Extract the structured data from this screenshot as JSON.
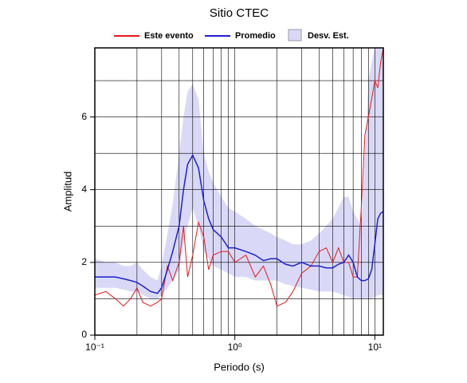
{
  "chart_data": {
    "type": "line",
    "title": "Sitio CTEC",
    "xlabel": "Periodo (s)",
    "ylabel": "Amplitud",
    "xscale": "log",
    "grid": true,
    "legend": "top",
    "xlim": [
      0.1,
      11.5
    ],
    "ylim": [
      0,
      7.9
    ],
    "xticks": [
      {
        "value": 0.1,
        "label": "10⁻¹"
      },
      {
        "value": 1,
        "label": "10⁰"
      },
      {
        "value": 10,
        "label": "10¹"
      }
    ],
    "xminor": [
      0.2,
      0.3,
      0.4,
      0.5,
      0.6,
      0.7,
      0.8,
      0.9,
      2,
      3,
      4,
      5,
      6,
      7,
      8,
      9
    ],
    "yticks": [
      0,
      2,
      4,
      6
    ],
    "yminor": [
      1,
      3,
      5,
      7
    ],
    "x": [
      0.1,
      0.12,
      0.14,
      0.16,
      0.18,
      0.2,
      0.22,
      0.25,
      0.28,
      0.3,
      0.33,
      0.36,
      0.4,
      0.43,
      0.46,
      0.5,
      0.55,
      0.6,
      0.65,
      0.7,
      0.8,
      0.9,
      1.0,
      1.2,
      1.4,
      1.6,
      1.8,
      2.0,
      2.3,
      2.6,
      3.0,
      3.5,
      4.0,
      4.5,
      5.0,
      5.5,
      6.0,
      6.5,
      7.0,
      7.5,
      8.0,
      8.5,
      9.0,
      9.5,
      10,
      10.5,
      11,
      11.5
    ],
    "series": [
      {
        "name": "Este evento",
        "color": "#e8191c",
        "values": [
          1.1,
          1.2,
          1.0,
          0.8,
          1.0,
          1.3,
          0.9,
          0.8,
          0.9,
          1.0,
          1.9,
          1.5,
          2.0,
          3.0,
          1.6,
          2.2,
          3.1,
          2.7,
          1.8,
          2.2,
          2.3,
          2.3,
          2.0,
          2.2,
          1.6,
          1.9,
          1.4,
          0.8,
          0.9,
          1.2,
          1.7,
          1.9,
          2.3,
          2.4,
          2.0,
          2.4,
          2.0,
          2.0,
          1.6,
          1.6,
          3.5,
          5.5,
          6.0,
          6.5,
          7.0,
          6.8,
          7.5,
          7.9
        ]
      },
      {
        "name": "Promedio",
        "color": "#1f1fd0",
        "values": [
          1.6,
          1.6,
          1.6,
          1.55,
          1.5,
          1.45,
          1.35,
          1.2,
          1.15,
          1.3,
          1.8,
          2.3,
          3.0,
          4.0,
          4.7,
          4.95,
          4.6,
          3.7,
          3.2,
          2.9,
          2.7,
          2.4,
          2.4,
          2.3,
          2.2,
          2.05,
          2.1,
          2.1,
          1.95,
          1.9,
          2.0,
          1.9,
          1.9,
          1.85,
          1.85,
          1.95,
          2.0,
          2.2,
          2.0,
          1.6,
          1.5,
          1.5,
          1.55,
          1.8,
          2.5,
          3.2,
          3.35,
          3.4
        ]
      },
      {
        "name": "Desv. Est.",
        "color": "#d9d9f7",
        "upper": [
          2.1,
          2.0,
          2.0,
          1.9,
          1.9,
          2.0,
          1.8,
          1.6,
          1.5,
          1.9,
          2.8,
          3.6,
          5.0,
          6.0,
          6.7,
          6.9,
          6.5,
          5.0,
          4.5,
          4.2,
          3.8,
          3.5,
          3.4,
          3.2,
          3.0,
          2.9,
          2.8,
          2.7,
          2.6,
          2.5,
          2.5,
          2.6,
          2.8,
          3.0,
          3.2,
          3.5,
          3.8,
          3.8,
          3.4,
          3.2,
          3.0,
          5.0,
          7.0,
          7.5,
          7.9,
          7.9,
          7.9,
          7.9
        ],
        "lower": [
          1.3,
          1.3,
          1.3,
          1.25,
          1.2,
          1.2,
          1.1,
          1.0,
          1.0,
          1.1,
          1.3,
          1.5,
          1.8,
          2.5,
          3.0,
          3.5,
          3.0,
          2.3,
          2.1,
          1.9,
          1.8,
          1.7,
          1.6,
          1.6,
          1.5,
          1.5,
          1.5,
          1.5,
          1.4,
          1.35,
          1.3,
          1.25,
          1.2,
          1.2,
          1.2,
          1.15,
          1.1,
          1.05,
          1.0,
          1.0,
          1.0,
          1.0,
          1.0,
          1.0,
          1.05,
          1.1,
          1.1,
          1.1
        ]
      }
    ]
  }
}
